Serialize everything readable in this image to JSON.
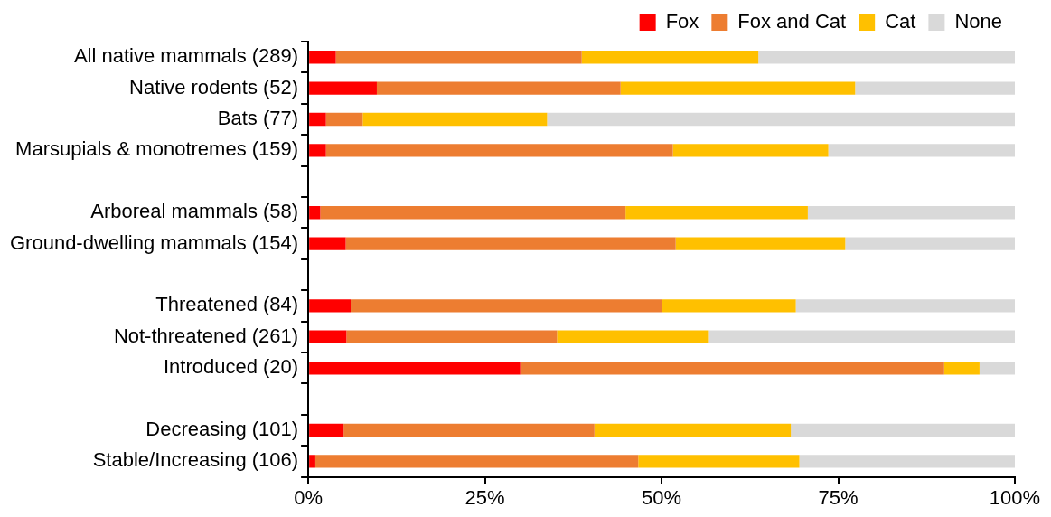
{
  "chart_data": {
    "type": "bar",
    "orientation": "horizontal",
    "stacked": true,
    "categories": [
      "All native mammals (289)",
      "Native rodents (52)",
      "Bats (77)",
      "Marsupials & monotremes (159)",
      null,
      "Arboreal mammals (58)",
      "Ground-dwelling mammals (154)",
      null,
      "Threatened (84)",
      "Not-threatened (261)",
      "Introduced (20)",
      null,
      "Decreasing (101)",
      "Stable/Increasing (106)"
    ],
    "series": [
      {
        "name": "Fox",
        "color": "#ff0000",
        "values": [
          3.9,
          9.7,
          2.5,
          2.5,
          null,
          1.7,
          5.3,
          null,
          6.0,
          5.4,
          30.0,
          null,
          5.0,
          1.0
        ]
      },
      {
        "name": "Fox and Cat",
        "color": "#ed7d31",
        "values": [
          34.8,
          34.5,
          5.2,
          49.1,
          null,
          43.2,
          46.7,
          null,
          44.0,
          29.8,
          60.0,
          null,
          35.5,
          45.7
        ]
      },
      {
        "name": "Cat",
        "color": "#ffc000",
        "values": [
          25.0,
          33.2,
          26.1,
          22.0,
          null,
          25.8,
          24.0,
          null,
          19.0,
          21.5,
          5.0,
          null,
          27.8,
          22.8
        ]
      },
      {
        "name": "None",
        "color": "#d9d9d9",
        "values": [
          36.3,
          22.6,
          66.2,
          26.4,
          null,
          29.3,
          24.0,
          null,
          31.0,
          43.3,
          5.0,
          null,
          31.7,
          30.5
        ]
      }
    ],
    "xlim": [
      0,
      100
    ],
    "xticks": [
      {
        "value": 0,
        "label": "0%"
      },
      {
        "value": 25,
        "label": "25%"
      },
      {
        "value": 50,
        "label": "50%"
      },
      {
        "value": 75,
        "label": "75%"
      },
      {
        "value": 100,
        "label": "100%"
      }
    ],
    "grid": false,
    "legend": "top right"
  }
}
